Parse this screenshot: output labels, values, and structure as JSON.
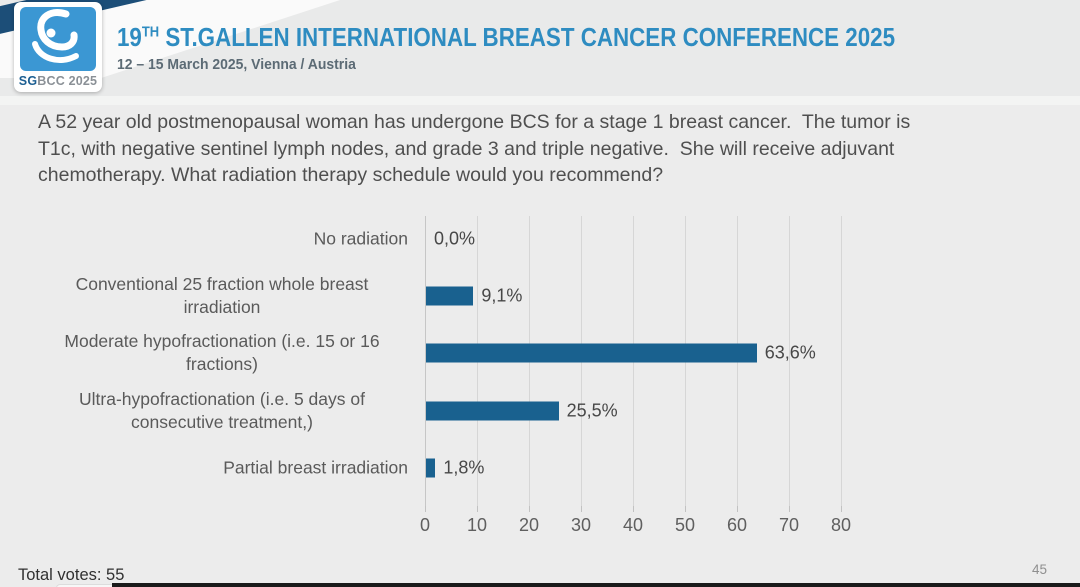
{
  "header": {
    "logo": {
      "label_bold": "SG",
      "label_rest": "BCC 2025",
      "square_color": "#3b97d3",
      "ribbon_color": "#1c4e78"
    },
    "title_prefix": "19",
    "title_sup": "TH",
    "title_rest": " ST.GALLEN INTERNATIONAL BREAST CANCER CONFERENCE 2025",
    "title_color": "#2e8cc1",
    "subtitle": "12 – 15 March 2025, Vienna / Austria"
  },
  "question_lines": [
    "A 52 year old postmenopausal woman has undergone BCS for a stage 1 breast cancer.  The tumor is",
    "T1c, with negative sentinel lymph nodes, and grade 3 and triple negative.  She will receive adjuvant",
    "chemotherapy. What radiation therapy schedule would you recommend?"
  ],
  "chart_data": {
    "type": "bar",
    "orientation": "horizontal",
    "categories": [
      "No radiation",
      "Conventional 25 fraction whole breast irradiation",
      "Moderate hypofractionation (i.e. 15 or 16 fractions)",
      "Ultra-hypofractionation (i.e. 5 days of consecutive treatment,)",
      "Partial breast irradiation"
    ],
    "values": [
      0.0,
      9.1,
      63.6,
      25.5,
      1.8
    ],
    "value_labels": [
      "0,0%",
      "9,1%",
      "63,6%",
      "25,5%",
      "1,8%"
    ],
    "x_ticks": [
      0,
      10,
      20,
      30,
      40,
      50,
      60,
      70,
      80
    ],
    "x_tick_labels": [
      "0",
      "10",
      "20",
      "30",
      "40",
      "50",
      "60",
      "70",
      "80"
    ],
    "xlim": [
      0,
      85
    ],
    "grid": true,
    "legend": false,
    "title": "",
    "xlabel": "",
    "ylabel": "",
    "bar_color": "#19618f"
  },
  "footer": {
    "total_votes": "Total votes: 55",
    "page_number": "45"
  }
}
